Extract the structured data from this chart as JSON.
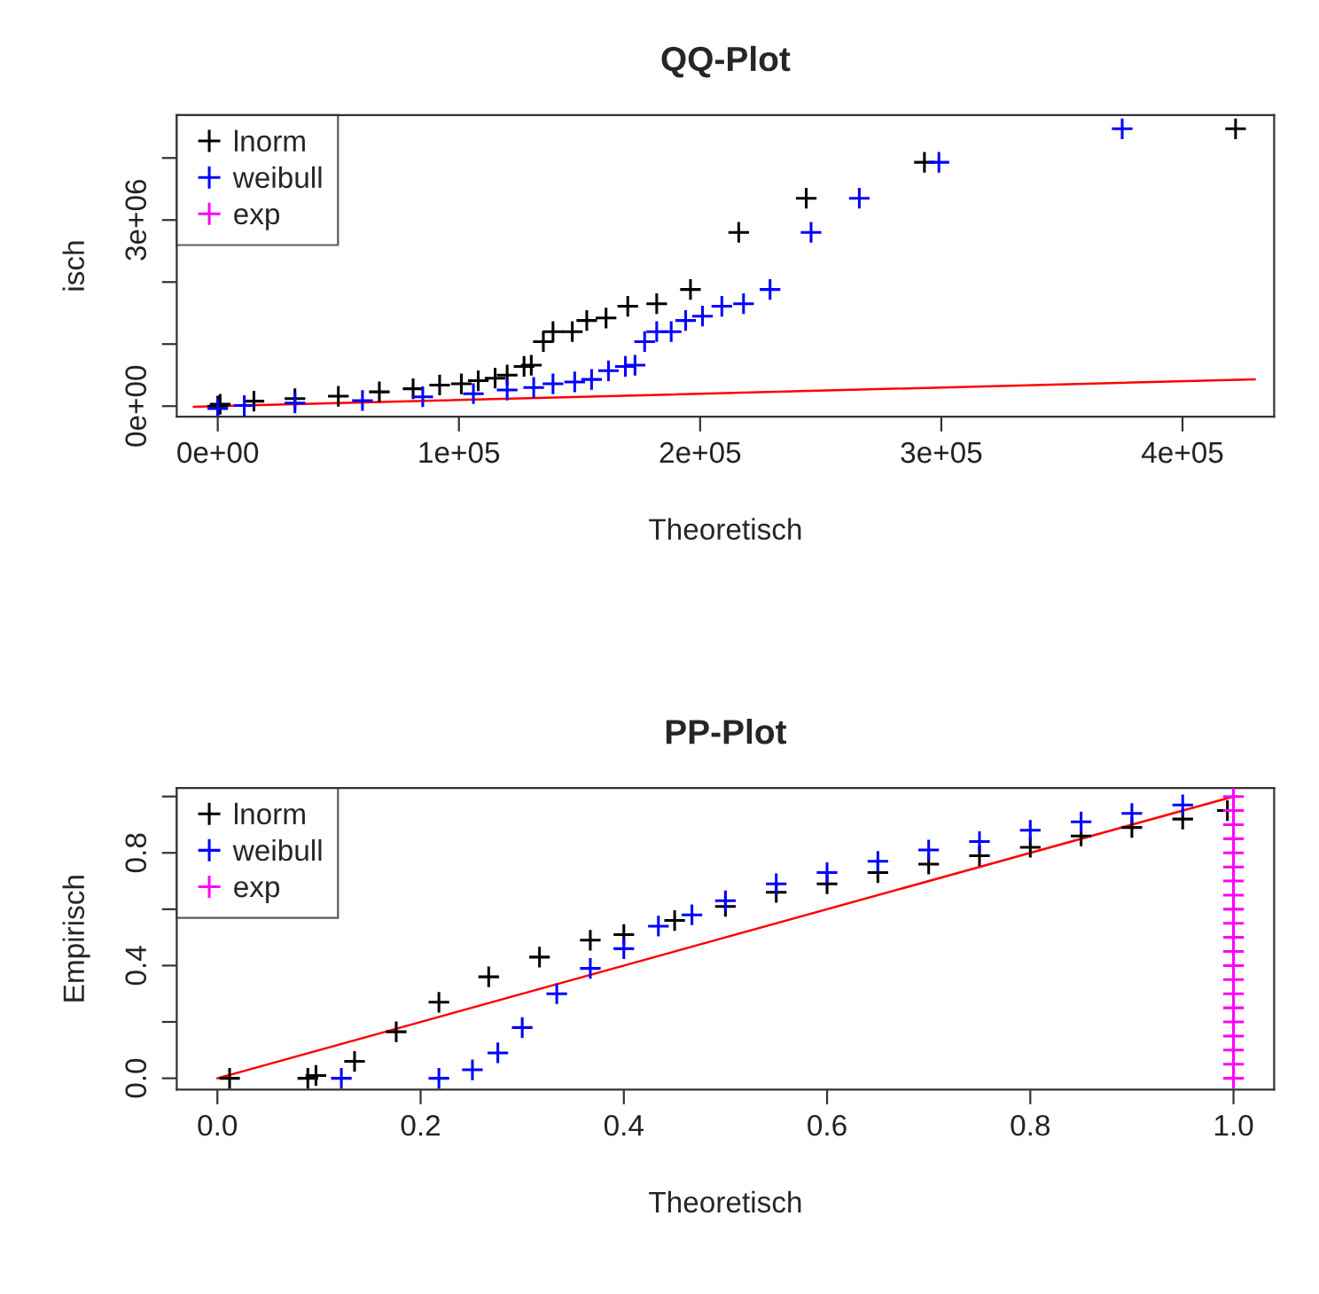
{
  "chart_data": [
    {
      "type": "scatter",
      "title": "QQ-Plot",
      "xlabel": "Theoretisch",
      "ylabel": "isch",
      "xlim": [
        -17000,
        438000
      ],
      "ylim": [
        -170000,
        4690000
      ],
      "xticks": [
        {
          "value": 0,
          "label": "0e+00"
        },
        {
          "value": 100000,
          "label": "1e+05"
        },
        {
          "value": 200000,
          "label": "2e+05"
        },
        {
          "value": 300000,
          "label": "3e+05"
        },
        {
          "value": 400000,
          "label": "4e+05"
        }
      ],
      "yticks": [
        {
          "value": 0,
          "label": "0e+00"
        },
        {
          "value": 1000000,
          "label": null
        },
        {
          "value": 2000000,
          "label": null
        },
        {
          "value": 3000000,
          "label": "3e+06"
        },
        {
          "value": 4000000,
          "label": null
        }
      ],
      "marker": "cross",
      "legend": "top left",
      "grid": false,
      "series": [
        {
          "name": "lnorm",
          "color": "#000000",
          "x": [
            0,
            1000,
            15000,
            32000,
            50000,
            67000,
            81000,
            92000,
            101000,
            108000,
            115000,
            120000,
            127000,
            130000,
            135000,
            139000,
            147000,
            153000,
            161000,
            170000,
            182000,
            196000,
            216000,
            244000,
            293000,
            422000
          ],
          "values": [
            0,
            30000,
            80000,
            120000,
            160000,
            230000,
            280000,
            340000,
            360000,
            410000,
            450000,
            500000,
            640000,
            660000,
            1040000,
            1200000,
            1200000,
            1380000,
            1420000,
            1610000,
            1650000,
            1880000,
            2800000,
            3350000,
            3930000,
            4470000
          ]
        },
        {
          "name": "weibull",
          "color": "#0000ff",
          "x": [
            0,
            11000,
            32000,
            60000,
            85000,
            106000,
            120000,
            131000,
            139000,
            148000,
            155000,
            162000,
            169000,
            173000,
            177000,
            182000,
            188000,
            194000,
            201000,
            209000,
            218000,
            229000,
            246000,
            266000,
            299000,
            375000
          ],
          "values": [
            -40000,
            10000,
            50000,
            90000,
            150000,
            200000,
            260000,
            300000,
            360000,
            390000,
            430000,
            570000,
            640000,
            660000,
            1040000,
            1200000,
            1200000,
            1380000,
            1450000,
            1610000,
            1650000,
            1880000,
            2800000,
            3350000,
            3930000,
            4470000
          ]
        },
        {
          "name": "exp",
          "color": "#ff00ff"
        },
        {
          "type": "line",
          "marker": "none",
          "color": "#ff0000",
          "x": [
            -10000,
            430000
          ],
          "values": [
            -10000,
            430000
          ]
        }
      ]
    },
    {
      "type": "scatter",
      "title": "PP-Plot",
      "xlabel": "Theoretisch",
      "ylabel": "Empirisch",
      "xlim": [
        -0.04,
        1.04
      ],
      "ylim": [
        -0.04,
        1.03
      ],
      "xticks": [
        {
          "value": 0,
          "label": "0.0"
        },
        {
          "value": 0.2,
          "label": "0.2"
        },
        {
          "value": 0.4,
          "label": "0.4"
        },
        {
          "value": 0.6,
          "label": "0.6"
        },
        {
          "value": 0.8,
          "label": "0.8"
        },
        {
          "value": 1,
          "label": "1.0"
        }
      ],
      "yticks": [
        {
          "value": 0,
          "label": "0.0"
        },
        {
          "value": 0.2,
          "label": null
        },
        {
          "value": 0.4,
          "label": "0.4"
        },
        {
          "value": 0.6,
          "label": null
        },
        {
          "value": 0.8,
          "label": "0.8"
        },
        {
          "value": 1,
          "label": null
        }
      ],
      "marker": "cross",
      "legend": "top left",
      "grid": false,
      "series": [
        {
          "name": "lnorm",
          "color": "#000000",
          "x": [
            0.012,
            0.089,
            0.097,
            0.135,
            0.176,
            0.218,
            0.267,
            0.317,
            0.367,
            0.4,
            0.45,
            0.5,
            0.55,
            0.6,
            0.65,
            0.7,
            0.75,
            0.8,
            0.85,
            0.9,
            0.95,
            0.994
          ],
          "values": [
            0,
            0,
            0.01,
            0.06,
            0.165,
            0.27,
            0.36,
            0.43,
            0.49,
            0.51,
            0.56,
            0.61,
            0.66,
            0.69,
            0.73,
            0.76,
            0.79,
            0.82,
            0.86,
            0.89,
            0.92,
            0.95
          ]
        },
        {
          "name": "weibull",
          "color": "#0000ff",
          "x": [
            0.122,
            0.218,
            0.251,
            0.276,
            0.3,
            0.334,
            0.367,
            0.4,
            0.434,
            0.467,
            0.5,
            0.55,
            0.6,
            0.65,
            0.7,
            0.75,
            0.8,
            0.85,
            0.9,
            0.95
          ],
          "values": [
            0,
            0,
            0.03,
            0.09,
            0.18,
            0.3,
            0.39,
            0.46,
            0.54,
            0.58,
            0.63,
            0.69,
            0.73,
            0.77,
            0.81,
            0.84,
            0.88,
            0.91,
            0.94,
            0.97
          ]
        },
        {
          "name": "exp",
          "color": "#ff00ff",
          "x": [
            1,
            1,
            1,
            1,
            1,
            1,
            1,
            1,
            1,
            1,
            1,
            1,
            1,
            1,
            1,
            1,
            1,
            1,
            1,
            1,
            1
          ],
          "values": [
            0,
            0.05,
            0.1,
            0.15,
            0.2,
            0.25,
            0.3,
            0.35,
            0.4,
            0.45,
            0.5,
            0.55,
            0.6,
            0.65,
            0.7,
            0.75,
            0.8,
            0.85,
            0.9,
            0.95,
            1.0
          ]
        },
        {
          "type": "line",
          "marker": "none",
          "color": "#ff0000",
          "x": [
            0,
            1
          ],
          "values": [
            0,
            1
          ]
        }
      ]
    }
  ]
}
